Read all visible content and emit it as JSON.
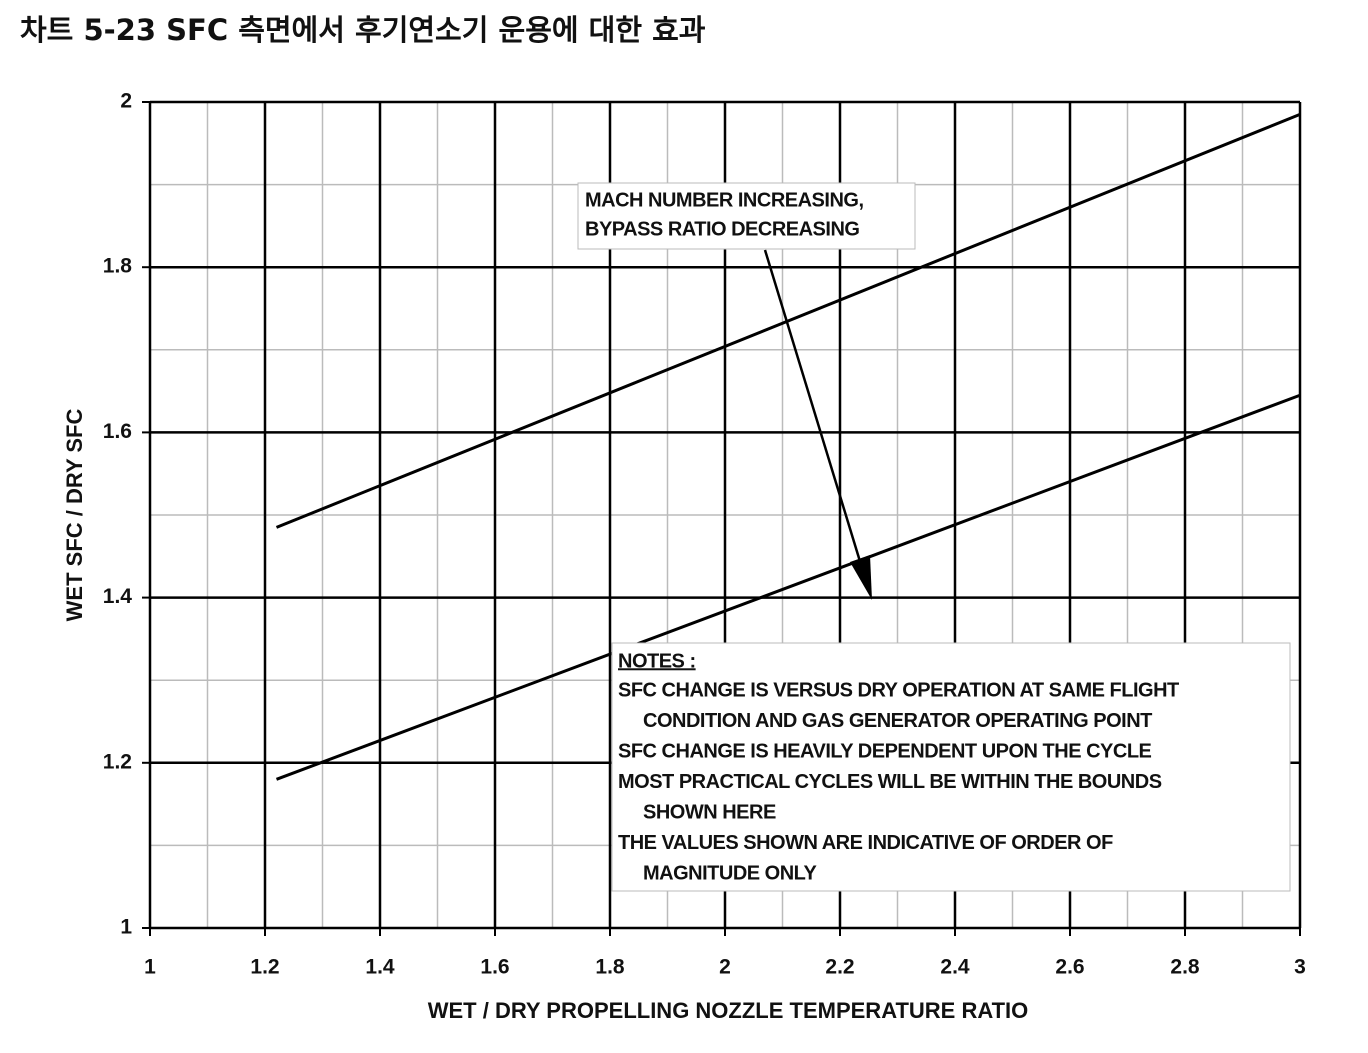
{
  "chart_data": {
    "type": "line",
    "title": "차트 5-23 SFC 측면에서 후기연소기 운용에 대한 효과",
    "x_label": "WET / DRY PROPELLING NOZZLE TEMPERATURE RATIO",
    "y_label": "WET SFC / DRY SFC",
    "x": [
      1.22,
      3
    ],
    "series": [
      {
        "color": "#000000",
        "values": [
          1.485,
          1.985
        ]
      },
      {
        "color": "#000000",
        "values": [
          1.18,
          1.645
        ]
      }
    ],
    "xlim": [
      1,
      3
    ],
    "ylim": [
      1,
      2
    ],
    "xticks": [
      1,
      1.2,
      1.4,
      1.6,
      1.8,
      2,
      2.2,
      2.4,
      2.6,
      2.8,
      3
    ],
    "yticks": [
      1,
      1.2,
      1.4,
      1.6,
      1.8,
      2
    ],
    "grid": true,
    "minor_grid": true,
    "annotations": [
      "MACH NUMBER INCREASING,",
      "BYPASS RATIO DECREASING"
    ],
    "notes": {
      "title": "NOTES :",
      "items": [
        [
          "SFC CHANGE  IS VERSUS DRY OPERATION AT SAME FLIGHT",
          "CONDITION AND GAS GENERATOR OPERATING POINT"
        ],
        [
          "SFC CHANGE IS HEAVILY DEPENDENT UPON THE CYCLE"
        ],
        [
          "MOST PRACTICAL CYCLES WILL BE WITHIN THE BOUNDS",
          "SHOWN HERE"
        ],
        [
          "THE VALUES SHOWN ARE INDICATIVE OF ORDER OF",
          "MAGNITUDE ONLY"
        ]
      ]
    }
  }
}
